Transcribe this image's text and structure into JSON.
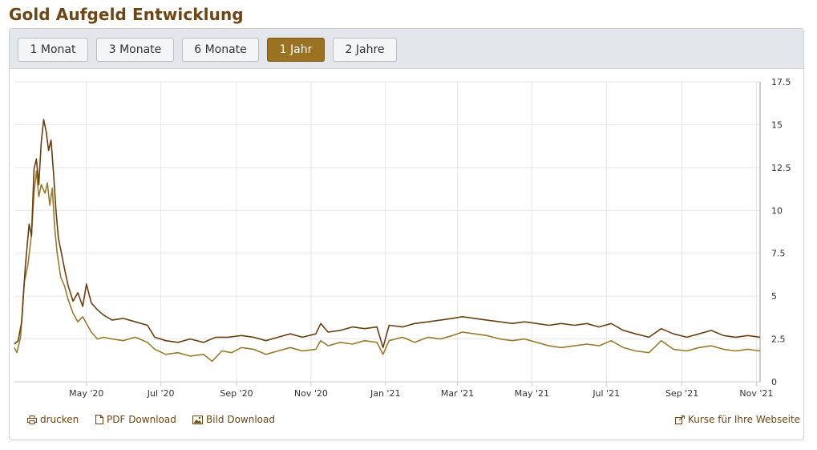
{
  "page": {
    "title": "Gold Aufgeld Entwicklung"
  },
  "toolbar": {
    "buttons": [
      {
        "label": "1 Monat",
        "active": false
      },
      {
        "label": "3 Monate",
        "active": false
      },
      {
        "label": "6 Monate",
        "active": false
      },
      {
        "label": "1 Jahr",
        "active": true
      },
      {
        "label": "2 Jahre",
        "active": false
      }
    ]
  },
  "footer": {
    "print": "drucken",
    "pdf": "PDF Download",
    "image": "Bild Download",
    "embed": "Kurse für Ihre Webseite"
  },
  "colors": {
    "series_dark": "#6b3f0f",
    "series_light": "#9a7a2b",
    "brand": "#6f4613",
    "active_button": "#9a7222"
  },
  "chart_data": {
    "type": "line",
    "title": "",
    "xlabel": "",
    "ylabel": "",
    "x_range": [
      "2020-03-03",
      "2021-11-04"
    ],
    "ylim": [
      0,
      17.5
    ],
    "y_ticks": [
      0,
      2.5,
      5,
      7.5,
      10,
      12.5,
      15,
      17.5
    ],
    "y_tick_labels": [
      "0",
      "2.5",
      "5",
      "7.5",
      "10",
      "12.5",
      "15",
      "17.5"
    ],
    "x_ticks": [
      "2020-05-01",
      "2020-07-01",
      "2020-09-01",
      "2020-11-01",
      "2021-01-01",
      "2021-03-01",
      "2021-05-01",
      "2021-07-01",
      "2021-09-01",
      "2021-11-01"
    ],
    "x_tick_labels": [
      "May '20",
      "Jul '20",
      "Sep '20",
      "Nov '20",
      "Jan '21",
      "Mar '21",
      "May '21",
      "Jul '21",
      "Sep '21",
      "Nov '21"
    ],
    "grid": true,
    "legend": "none",
    "series": [
      {
        "color": "#6b3f0f",
        "points": [
          [
            "2020-03-03",
            2.2
          ],
          [
            "2020-03-06",
            2.4
          ],
          [
            "2020-03-09",
            3.5
          ],
          [
            "2020-03-12",
            6.8
          ],
          [
            "2020-03-15",
            9.2
          ],
          [
            "2020-03-17",
            8.5
          ],
          [
            "2020-03-19",
            12.4
          ],
          [
            "2020-03-21",
            13.0
          ],
          [
            "2020-03-23",
            11.5
          ],
          [
            "2020-03-25",
            14.0
          ],
          [
            "2020-03-27",
            15.3
          ],
          [
            "2020-03-29",
            14.6
          ],
          [
            "2020-03-31",
            13.5
          ],
          [
            "2020-04-02",
            14.1
          ],
          [
            "2020-04-04",
            12.2
          ],
          [
            "2020-04-06",
            10.0
          ],
          [
            "2020-04-08",
            8.4
          ],
          [
            "2020-04-10",
            7.7
          ],
          [
            "2020-04-13",
            6.6
          ],
          [
            "2020-04-16",
            5.6
          ],
          [
            "2020-04-20",
            4.7
          ],
          [
            "2020-04-24",
            5.2
          ],
          [
            "2020-04-28",
            4.4
          ],
          [
            "2020-05-01",
            5.7
          ],
          [
            "2020-05-05",
            4.6
          ],
          [
            "2020-05-10",
            4.2
          ],
          [
            "2020-05-15",
            3.9
          ],
          [
            "2020-05-22",
            3.6
          ],
          [
            "2020-05-31",
            3.7
          ],
          [
            "2020-06-10",
            3.5
          ],
          [
            "2020-06-20",
            3.3
          ],
          [
            "2020-06-26",
            2.6
          ],
          [
            "2020-07-05",
            2.4
          ],
          [
            "2020-07-15",
            2.3
          ],
          [
            "2020-07-25",
            2.5
          ],
          [
            "2020-08-05",
            2.3
          ],
          [
            "2020-08-15",
            2.6
          ],
          [
            "2020-08-25",
            2.6
          ],
          [
            "2020-09-05",
            2.7
          ],
          [
            "2020-09-15",
            2.6
          ],
          [
            "2020-09-25",
            2.4
          ],
          [
            "2020-10-05",
            2.6
          ],
          [
            "2020-10-15",
            2.8
          ],
          [
            "2020-10-25",
            2.6
          ],
          [
            "2020-11-05",
            2.8
          ],
          [
            "2020-11-09",
            3.4
          ],
          [
            "2020-11-15",
            2.9
          ],
          [
            "2020-11-25",
            3.0
          ],
          [
            "2020-12-05",
            3.2
          ],
          [
            "2020-12-15",
            3.1
          ],
          [
            "2020-12-25",
            3.2
          ],
          [
            "2020-12-30",
            2.0
          ],
          [
            "2021-01-04",
            3.3
          ],
          [
            "2021-01-15",
            3.2
          ],
          [
            "2021-01-25",
            3.4
          ],
          [
            "2021-02-05",
            3.5
          ],
          [
            "2021-02-15",
            3.6
          ],
          [
            "2021-02-25",
            3.7
          ],
          [
            "2021-03-05",
            3.8
          ],
          [
            "2021-03-15",
            3.7
          ],
          [
            "2021-03-25",
            3.6
          ],
          [
            "2021-04-05",
            3.5
          ],
          [
            "2021-04-15",
            3.4
          ],
          [
            "2021-04-25",
            3.5
          ],
          [
            "2021-05-05",
            3.4
          ],
          [
            "2021-05-15",
            3.3
          ],
          [
            "2021-05-25",
            3.4
          ],
          [
            "2021-06-05",
            3.3
          ],
          [
            "2021-06-15",
            3.4
          ],
          [
            "2021-06-25",
            3.2
          ],
          [
            "2021-07-05",
            3.4
          ],
          [
            "2021-07-15",
            3.0
          ],
          [
            "2021-07-25",
            2.8
          ],
          [
            "2021-08-05",
            2.6
          ],
          [
            "2021-08-15",
            3.1
          ],
          [
            "2021-08-25",
            2.8
          ],
          [
            "2021-09-05",
            2.6
          ],
          [
            "2021-09-15",
            2.8
          ],
          [
            "2021-09-25",
            3.0
          ],
          [
            "2021-10-05",
            2.7
          ],
          [
            "2021-10-15",
            2.6
          ],
          [
            "2021-10-25",
            2.7
          ],
          [
            "2021-11-04",
            2.6
          ]
        ]
      },
      {
        "color": "#9a7a2b",
        "points": [
          [
            "2020-03-03",
            2.0
          ],
          [
            "2020-03-05",
            1.7
          ],
          [
            "2020-03-08",
            2.6
          ],
          [
            "2020-03-11",
            5.8
          ],
          [
            "2020-03-14",
            6.8
          ],
          [
            "2020-03-17",
            8.6
          ],
          [
            "2020-03-19",
            11.0
          ],
          [
            "2020-03-21",
            12.3
          ],
          [
            "2020-03-23",
            10.8
          ],
          [
            "2020-03-25",
            11.5
          ],
          [
            "2020-03-28",
            11.0
          ],
          [
            "2020-03-30",
            11.6
          ],
          [
            "2020-04-01",
            10.3
          ],
          [
            "2020-04-03",
            11.3
          ],
          [
            "2020-04-05",
            9.0
          ],
          [
            "2020-04-07",
            7.5
          ],
          [
            "2020-04-10",
            6.1
          ],
          [
            "2020-04-13",
            5.6
          ],
          [
            "2020-04-16",
            4.8
          ],
          [
            "2020-04-20",
            4.0
          ],
          [
            "2020-04-24",
            3.5
          ],
          [
            "2020-04-28",
            3.8
          ],
          [
            "2020-05-01",
            3.4
          ],
          [
            "2020-05-05",
            2.9
          ],
          [
            "2020-05-10",
            2.5
          ],
          [
            "2020-05-15",
            2.6
          ],
          [
            "2020-05-22",
            2.5
          ],
          [
            "2020-05-31",
            2.4
          ],
          [
            "2020-06-10",
            2.6
          ],
          [
            "2020-06-20",
            2.3
          ],
          [
            "2020-06-26",
            1.9
          ],
          [
            "2020-07-05",
            1.6
          ],
          [
            "2020-07-15",
            1.7
          ],
          [
            "2020-07-25",
            1.5
          ],
          [
            "2020-08-05",
            1.6
          ],
          [
            "2020-08-12",
            1.2
          ],
          [
            "2020-08-20",
            1.8
          ],
          [
            "2020-08-28",
            1.7
          ],
          [
            "2020-09-05",
            2.0
          ],
          [
            "2020-09-15",
            1.9
          ],
          [
            "2020-09-25",
            1.6
          ],
          [
            "2020-10-05",
            1.8
          ],
          [
            "2020-10-15",
            2.0
          ],
          [
            "2020-10-25",
            1.8
          ],
          [
            "2020-11-05",
            1.9
          ],
          [
            "2020-11-09",
            2.4
          ],
          [
            "2020-11-15",
            2.1
          ],
          [
            "2020-11-25",
            2.3
          ],
          [
            "2020-12-05",
            2.2
          ],
          [
            "2020-12-15",
            2.4
          ],
          [
            "2020-12-25",
            2.3
          ],
          [
            "2020-12-30",
            1.6
          ],
          [
            "2021-01-04",
            2.4
          ],
          [
            "2021-01-15",
            2.6
          ],
          [
            "2021-01-25",
            2.3
          ],
          [
            "2021-02-05",
            2.6
          ],
          [
            "2021-02-15",
            2.5
          ],
          [
            "2021-02-25",
            2.7
          ],
          [
            "2021-03-05",
            2.9
          ],
          [
            "2021-03-15",
            2.8
          ],
          [
            "2021-03-25",
            2.7
          ],
          [
            "2021-04-05",
            2.5
          ],
          [
            "2021-04-15",
            2.4
          ],
          [
            "2021-04-25",
            2.5
          ],
          [
            "2021-05-05",
            2.3
          ],
          [
            "2021-05-15",
            2.1
          ],
          [
            "2021-05-25",
            2.0
          ],
          [
            "2021-06-05",
            2.1
          ],
          [
            "2021-06-15",
            2.2
          ],
          [
            "2021-06-25",
            2.1
          ],
          [
            "2021-07-05",
            2.4
          ],
          [
            "2021-07-15",
            2.0
          ],
          [
            "2021-07-25",
            1.8
          ],
          [
            "2021-08-05",
            1.7
          ],
          [
            "2021-08-15",
            2.4
          ],
          [
            "2021-08-25",
            1.9
          ],
          [
            "2021-09-05",
            1.8
          ],
          [
            "2021-09-15",
            2.0
          ],
          [
            "2021-09-25",
            2.1
          ],
          [
            "2021-10-05",
            1.9
          ],
          [
            "2021-10-15",
            1.8
          ],
          [
            "2021-10-25",
            1.9
          ],
          [
            "2021-11-04",
            1.8
          ]
        ]
      }
    ]
  }
}
